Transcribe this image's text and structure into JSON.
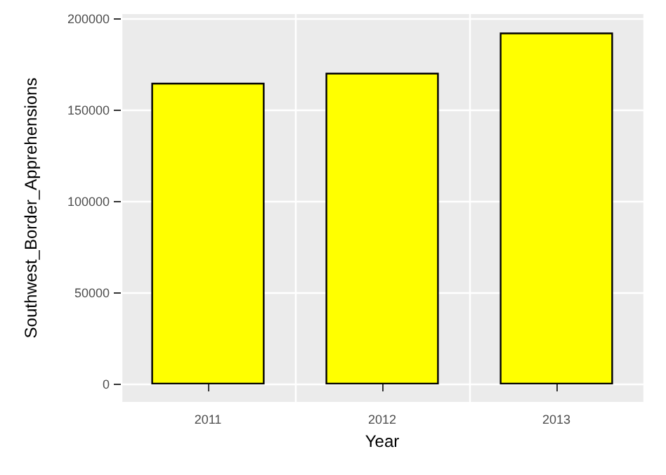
{
  "chart_data": {
    "type": "bar",
    "xlabel": "Year",
    "ylabel": "Southwest_Border_Apprehensions",
    "categories": [
      "2011",
      "2012",
      "2013"
    ],
    "values": [
      165000,
      170500,
      192500
    ],
    "color": "#ffff00",
    "ylim": [
      -9600,
      202600
    ],
    "yticks": [
      0,
      50000,
      100000,
      150000,
      200000
    ],
    "grid": true
  }
}
